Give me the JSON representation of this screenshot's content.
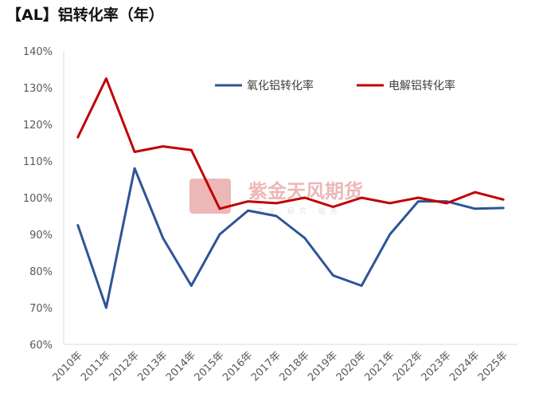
{
  "chart_data": {
    "type": "line",
    "title": "【AL】铝转化率（年）",
    "categories": [
      "2010年",
      "2011年",
      "2012年",
      "2013年",
      "2014年",
      "2015年",
      "2016年",
      "2017年",
      "2018年",
      "2019年",
      "2020年",
      "2021年",
      "2022年",
      "2023年",
      "2024年",
      "2025年"
    ],
    "series": [
      {
        "name": "氧化铝转化率",
        "color": "#2e5496",
        "values": [
          92.5,
          70.0,
          108.0,
          89.0,
          76.0,
          90.0,
          96.5,
          95.0,
          89.0,
          78.8,
          76.0,
          90.0,
          99.0,
          99.0,
          97.0,
          97.2
        ]
      },
      {
        "name": "电解铝转化率",
        "color": "#c00000",
        "values": [
          116.5,
          132.5,
          112.5,
          114.0,
          113.0,
          97.0,
          99.0,
          98.5,
          100.0,
          97.5,
          100.0,
          98.5,
          100.0,
          98.5,
          101.5,
          99.5
        ]
      }
    ],
    "yticks": [
      "60%",
      "70%",
      "80%",
      "90%",
      "100%",
      "110%",
      "120%",
      "130%",
      "140%"
    ],
    "ylim": [
      60,
      140
    ],
    "legend_position": "top-center",
    "watermark": {
      "name": "紫金天风期货",
      "tagline": "产业·研究·服务"
    }
  }
}
